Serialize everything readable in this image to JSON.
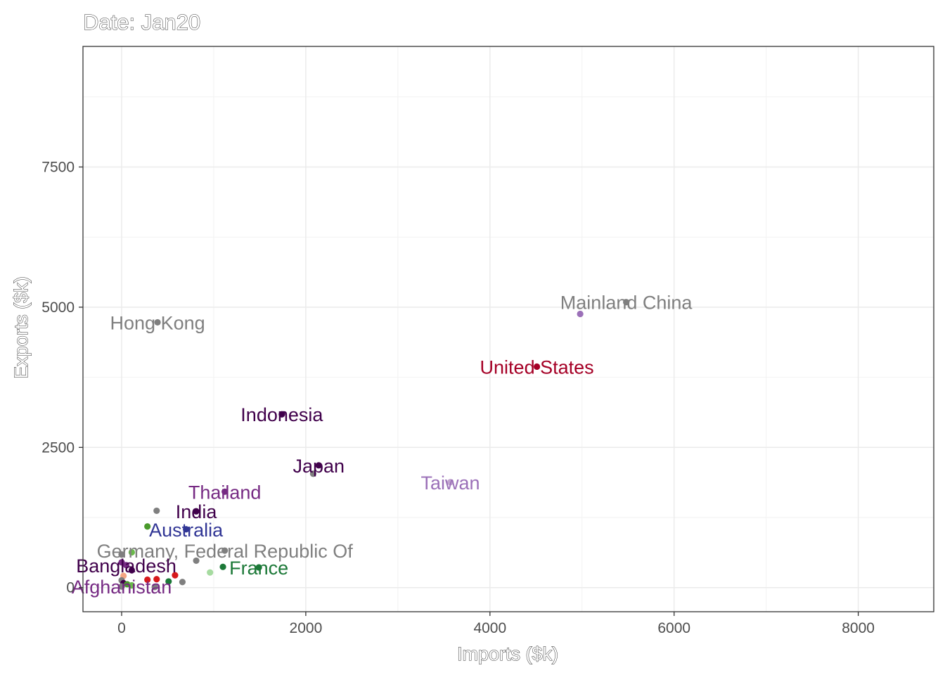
{
  "chart_data": {
    "type": "scatter",
    "title": "Date: Jan20",
    "xlabel": "Imports ($k)",
    "ylabel": "Exports ($k)",
    "xlim": [
      -420,
      8820
    ],
    "ylim": [
      -430,
      9650
    ],
    "x_ticks": [
      {
        "value": 0,
        "label": "0"
      },
      {
        "value": 2000,
        "label": "2000"
      },
      {
        "value": 4000,
        "label": "4000"
      },
      {
        "value": 6000,
        "label": "6000"
      },
      {
        "value": 8000,
        "label": "8000"
      }
    ],
    "y_ticks": [
      {
        "value": 0,
        "label": "0"
      },
      {
        "value": 2500,
        "label": "2500"
      },
      {
        "value": 5000,
        "label": "5000"
      },
      {
        "value": 7500,
        "label": "7500"
      }
    ],
    "x_minor": [
      1000,
      3000,
      5000,
      7000
    ],
    "y_minor": [
      1250,
      3750,
      6250,
      8750
    ],
    "grid": true,
    "legend": "none",
    "points": [
      {
        "x": 5480,
        "y": 5090,
        "color": "#7f7f7f"
      },
      {
        "x": 4980,
        "y": 4880,
        "color": "#9b70b8"
      },
      {
        "x": 390,
        "y": 4730,
        "color": "#7f7f7f"
      },
      {
        "x": 4510,
        "y": 3940,
        "color": "#a50026"
      },
      {
        "x": 1740,
        "y": 3090,
        "color": "#40004b"
      },
      {
        "x": 2140,
        "y": 2180,
        "color": "#40004b"
      },
      {
        "x": 2080,
        "y": 2030,
        "color": "#7f7f7f"
      },
      {
        "x": 3570,
        "y": 1880,
        "color": "#c2a5cf"
      },
      {
        "x": 1120,
        "y": 1710,
        "color": "#762a83"
      },
      {
        "x": 380,
        "y": 1370,
        "color": "#7f7f7f"
      },
      {
        "x": 810,
        "y": 1360,
        "color": "#40004b"
      },
      {
        "x": 280,
        "y": 1090,
        "color": "#4a9a2c"
      },
      {
        "x": 700,
        "y": 1040,
        "color": "#313695"
      },
      {
        "x": 1120,
        "y": 660,
        "color": "#7f7f7f"
      },
      {
        "x": 110,
        "y": 630,
        "color": "#6aba4b"
      },
      {
        "x": 0,
        "y": 590,
        "color": "#7f7f7f"
      },
      {
        "x": 810,
        "y": 480,
        "color": "#7f7f7f"
      },
      {
        "x": 0,
        "y": 450,
        "color": "#762a83"
      },
      {
        "x": 50,
        "y": 400,
        "color": "#762a83"
      },
      {
        "x": 1100,
        "y": 370,
        "color": "#1b7837"
      },
      {
        "x": 1490,
        "y": 360,
        "color": "#1b7837"
      },
      {
        "x": 110,
        "y": 310,
        "color": "#40004b"
      },
      {
        "x": 960,
        "y": 270,
        "color": "#a6dba0"
      },
      {
        "x": 580,
        "y": 220,
        "color": "#d7191c"
      },
      {
        "x": 20,
        "y": 210,
        "color": "#f4a582"
      },
      {
        "x": 380,
        "y": 150,
        "color": "#d7191c"
      },
      {
        "x": 280,
        "y": 140,
        "color": "#d7191c"
      },
      {
        "x": 510,
        "y": 110,
        "color": "#1b7837"
      },
      {
        "x": 660,
        "y": 100,
        "color": "#7f7f7f"
      },
      {
        "x": 0,
        "y": 130,
        "color": "#7f7f7f"
      },
      {
        "x": 20,
        "y": 80,
        "color": "#40004b"
      },
      {
        "x": 60,
        "y": 60,
        "color": "#4a9a2c"
      },
      {
        "x": 110,
        "y": 40,
        "color": "#6aba4b"
      },
      {
        "x": 0,
        "y": 20,
        "color": "#7f7f7f"
      },
      {
        "x": 360,
        "y": 10,
        "color": "#7f7f7f"
      }
    ],
    "labels": [
      {
        "text": "Mainland China",
        "x": 5480,
        "y": 5090,
        "color": "#7f7f7f"
      },
      {
        "text": "Hong Kong",
        "x": 390,
        "y": 4730,
        "color": "#7f7f7f"
      },
      {
        "text": "United States",
        "x": 4510,
        "y": 3940,
        "color": "#a50026"
      },
      {
        "text": "Indonesia",
        "x": 1740,
        "y": 3090,
        "color": "#40004b"
      },
      {
        "text": "Japan",
        "x": 2140,
        "y": 2180,
        "color": "#40004b"
      },
      {
        "text": "Taiwan",
        "x": 3570,
        "y": 1880,
        "color": "#9b70b8"
      },
      {
        "text": "Thailand",
        "x": 1120,
        "y": 1710,
        "color": "#762a83"
      },
      {
        "text": "India",
        "x": 810,
        "y": 1360,
        "color": "#40004b"
      },
      {
        "text": "Australia",
        "x": 700,
        "y": 1040,
        "color": "#313695"
      },
      {
        "text": "Germany, Federal Republic Of",
        "x": 1120,
        "y": 660,
        "color": "#7f7f7f"
      },
      {
        "text": "France",
        "x": 1490,
        "y": 360,
        "color": "#1b7837"
      },
      {
        "text": "Bangladesh",
        "x": 50,
        "y": 400,
        "color": "#40004b"
      },
      {
        "text": "Afghanistan",
        "x": 0,
        "y": 20,
        "color": "#762a83"
      }
    ]
  }
}
